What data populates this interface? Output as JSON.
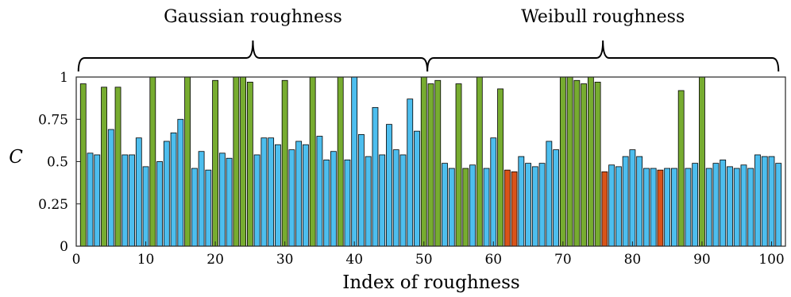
{
  "chart_data": {
    "type": "bar",
    "xlabel": "Index of roughness",
    "ylabel": "C",
    "xlim": [
      0,
      102
    ],
    "ylim": [
      0,
      1
    ],
    "x_ticks": [
      "0",
      "10",
      "20",
      "30",
      "40",
      "50",
      "60",
      "70",
      "80",
      "90",
      "100"
    ],
    "y_ticks": [
      "0",
      "0.25",
      "0.5",
      "0.75",
      "1"
    ],
    "grid": false,
    "colors": {
      "green": "#77ac30",
      "blue": "#4dbeee",
      "orange": "#d95319"
    },
    "groups": [
      {
        "label": "Gaussian roughness",
        "x_range": [
          1,
          50.5
        ]
      },
      {
        "label": "Weibull roughness",
        "x_range": [
          50.5,
          101
        ]
      }
    ],
    "x": [
      1,
      2,
      3,
      4,
      5,
      6,
      7,
      8,
      9,
      10,
      11,
      12,
      13,
      14,
      15,
      16,
      17,
      18,
      19,
      20,
      21,
      22,
      23,
      24,
      25,
      26,
      27,
      28,
      29,
      30,
      31,
      32,
      33,
      34,
      35,
      36,
      37,
      38,
      39,
      40,
      41,
      42,
      43,
      44,
      45,
      46,
      47,
      48,
      49,
      50,
      51,
      52,
      53,
      54,
      55,
      56,
      57,
      58,
      59,
      60,
      61,
      62,
      63,
      64,
      65,
      66,
      67,
      68,
      69,
      70,
      71,
      72,
      73,
      74,
      75,
      76,
      77,
      78,
      79,
      80,
      81,
      82,
      83,
      84,
      85,
      86,
      87,
      88,
      89,
      90,
      91,
      92,
      93,
      94,
      95,
      96,
      97,
      98,
      99,
      100,
      101
    ],
    "values": [
      0.96,
      0.55,
      0.54,
      0.94,
      0.69,
      0.94,
      0.54,
      0.54,
      0.64,
      0.47,
      1,
      0.5,
      0.62,
      0.67,
      0.75,
      1,
      0.46,
      0.56,
      0.45,
      0.98,
      0.55,
      0.52,
      1,
      1,
      0.97,
      0.54,
      0.64,
      0.64,
      0.6,
      0.98,
      0.57,
      0.62,
      0.6,
      1,
      0.65,
      0.51,
      0.56,
      1,
      0.51,
      1,
      0.66,
      0.53,
      0.82,
      0.54,
      0.72,
      0.57,
      0.54,
      0.87,
      0.68,
      1,
      0.96,
      0.98,
      0.49,
      0.46,
      0.96,
      0.46,
      0.48,
      1,
      0.46,
      0.64,
      0.93,
      0.45,
      0.44,
      0.53,
      0.49,
      0.47,
      0.49,
      0.62,
      0.57,
      1,
      1,
      0.98,
      0.96,
      1,
      0.97,
      0.44,
      0.48,
      0.47,
      0.53,
      0.57,
      0.53,
      0.46,
      0.46,
      0.45,
      0.46,
      0.46,
      0.92,
      0.46,
      0.49,
      1,
      0.46,
      0.49,
      0.51,
      0.47,
      0.46,
      0.48,
      0.46,
      0.54,
      0.53,
      0.53,
      0.49
    ],
    "bar_colors": [
      "green",
      "blue",
      "blue",
      "green",
      "blue",
      "green",
      "blue",
      "blue",
      "blue",
      "blue",
      "green",
      "blue",
      "blue",
      "blue",
      "blue",
      "green",
      "blue",
      "blue",
      "blue",
      "green",
      "blue",
      "blue",
      "green",
      "green",
      "green",
      "blue",
      "blue",
      "blue",
      "blue",
      "green",
      "blue",
      "blue",
      "blue",
      "green",
      "blue",
      "blue",
      "blue",
      "green",
      "blue",
      "blue",
      "blue",
      "blue",
      "blue",
      "blue",
      "blue",
      "blue",
      "blue",
      "blue",
      "blue",
      "green",
      "green",
      "green",
      "blue",
      "blue",
      "green",
      "green",
      "blue",
      "green",
      "blue",
      "blue",
      "green",
      "orange",
      "orange",
      "blue",
      "blue",
      "blue",
      "blue",
      "blue",
      "blue",
      "green",
      "green",
      "green",
      "green",
      "green",
      "green",
      "orange",
      "blue",
      "blue",
      "blue",
      "blue",
      "blue",
      "blue",
      "blue",
      "orange",
      "blue",
      "blue",
      "green",
      "blue",
      "blue",
      "green",
      "blue",
      "blue",
      "blue",
      "blue",
      "blue",
      "blue",
      "blue",
      "blue",
      "blue",
      "blue",
      "blue"
    ]
  }
}
